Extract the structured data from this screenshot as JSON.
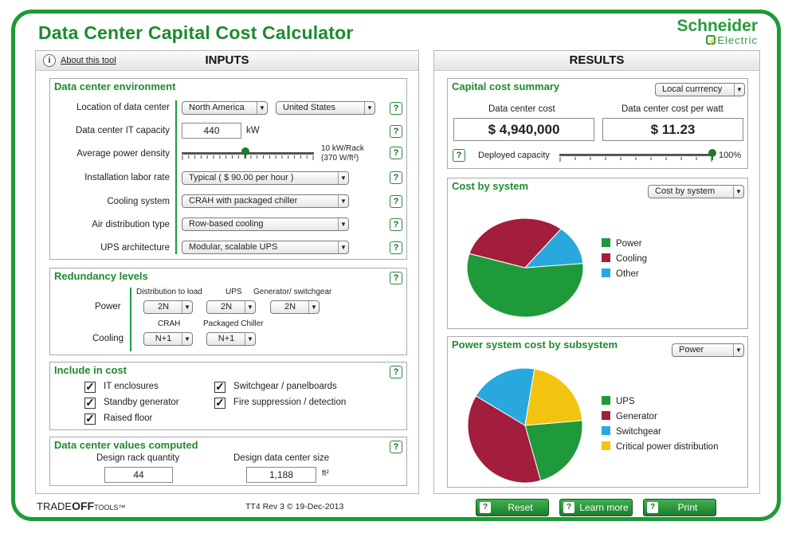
{
  "app": {
    "title": "Data Center Capital Cost Calculator",
    "brand_line1": "Schneider",
    "brand_line2": "Electric",
    "footer_brand_a": "TRADE",
    "footer_brand_b": "OFF",
    "footer_brand_c": "TOOLS",
    "footer_tm": "™",
    "revision": "TT4 Rev 3  ©  19-Dec-2013"
  },
  "inputs": {
    "panel_title": "INPUTS",
    "about_icon": "i",
    "about_label": "About this tool",
    "help_glyph": "?",
    "environment": {
      "title": "Data center environment",
      "location_label": "Location of data center",
      "region": "North America",
      "country": "United States",
      "capacity_label": "Data center IT capacity",
      "capacity_value": "440",
      "capacity_unit": "kW",
      "density_label": "Average power density",
      "density_value_line1": "10 kW/Rack",
      "density_value_line2": "(370 W/ft²)",
      "density_slider_fraction": 0.48,
      "labor_label": "Installation labor rate",
      "labor_value": "Typical ( $ 90.00 per hour )",
      "cooling_label": "Cooling system",
      "cooling_value": "CRAH with packaged chiller",
      "air_label": "Air distribution type",
      "air_value": "Row-based cooling",
      "ups_label": "UPS architecture",
      "ups_value": "Modular, scalable UPS"
    },
    "redundancy": {
      "title": "Redundancy levels",
      "col_dist": "Distribution to load",
      "col_ups": "UPS",
      "col_gen": "Generator/ switchgear",
      "row_power": "Power",
      "power_dist": "2N",
      "power_ups": "2N",
      "power_gen": "2N",
      "col_crah": "CRAH",
      "col_chiller": "Packaged Chiller",
      "row_cooling": "Cooling",
      "cool_crah": "N+1",
      "cool_chiller": "N+1"
    },
    "include": {
      "title": "Include in cost",
      "check_mark": "✓",
      "items": [
        {
          "label": "IT enclosures",
          "checked": true
        },
        {
          "label": "Standby generator",
          "checked": true
        },
        {
          "label": "Raised floor",
          "checked": true
        },
        {
          "label": "Switchgear / panelboards",
          "checked": true
        },
        {
          "label": "Fire suppression / detection",
          "checked": true
        }
      ]
    },
    "computed": {
      "title": "Data center values computed",
      "rack_label": "Design rack quantity",
      "rack_value": "44",
      "size_label": "Design data center size",
      "size_value": "1,188",
      "size_unit": "ft²"
    }
  },
  "results": {
    "panel_title": "RESULTS",
    "summary": {
      "title": "Capital cost summary",
      "currency_select": "Local currrency",
      "cost_label": "Data center cost",
      "cost_value": "$ 4,940,000",
      "per_watt_label": "Data center cost per watt",
      "per_watt_value": "$ 11.23",
      "deployed_label": "Deployed capacity",
      "deployed_value": "100%",
      "deployed_fraction": 1.0
    },
    "by_system": {
      "title": "Cost by system",
      "select": "Cost by system",
      "slices": [
        {
          "name": "Power",
          "fraction": 0.56,
          "color": "#1f9a3a"
        },
        {
          "name": "Cooling",
          "fraction": 0.31,
          "color": "#a31d3d"
        },
        {
          "name": "Other",
          "fraction": 0.13,
          "color": "#29a8dd"
        }
      ]
    },
    "by_subsystem": {
      "title": "Power system cost by subsystem",
      "select": "Power",
      "slices": [
        {
          "name": "UPS",
          "fraction": 0.22,
          "color": "#1f9a3a"
        },
        {
          "name": "Generator",
          "fraction": 0.38,
          "color": "#a31d3d"
        },
        {
          "name": "Switchgear",
          "fraction": 0.19,
          "color": "#29a8dd"
        },
        {
          "name": "Critical power distribution",
          "fraction": 0.21,
          "color": "#f2c40f"
        }
      ]
    }
  },
  "buttons": {
    "help_glyph": "?",
    "reset": "Reset",
    "learn": "Learn more",
    "print": "Print"
  }
}
